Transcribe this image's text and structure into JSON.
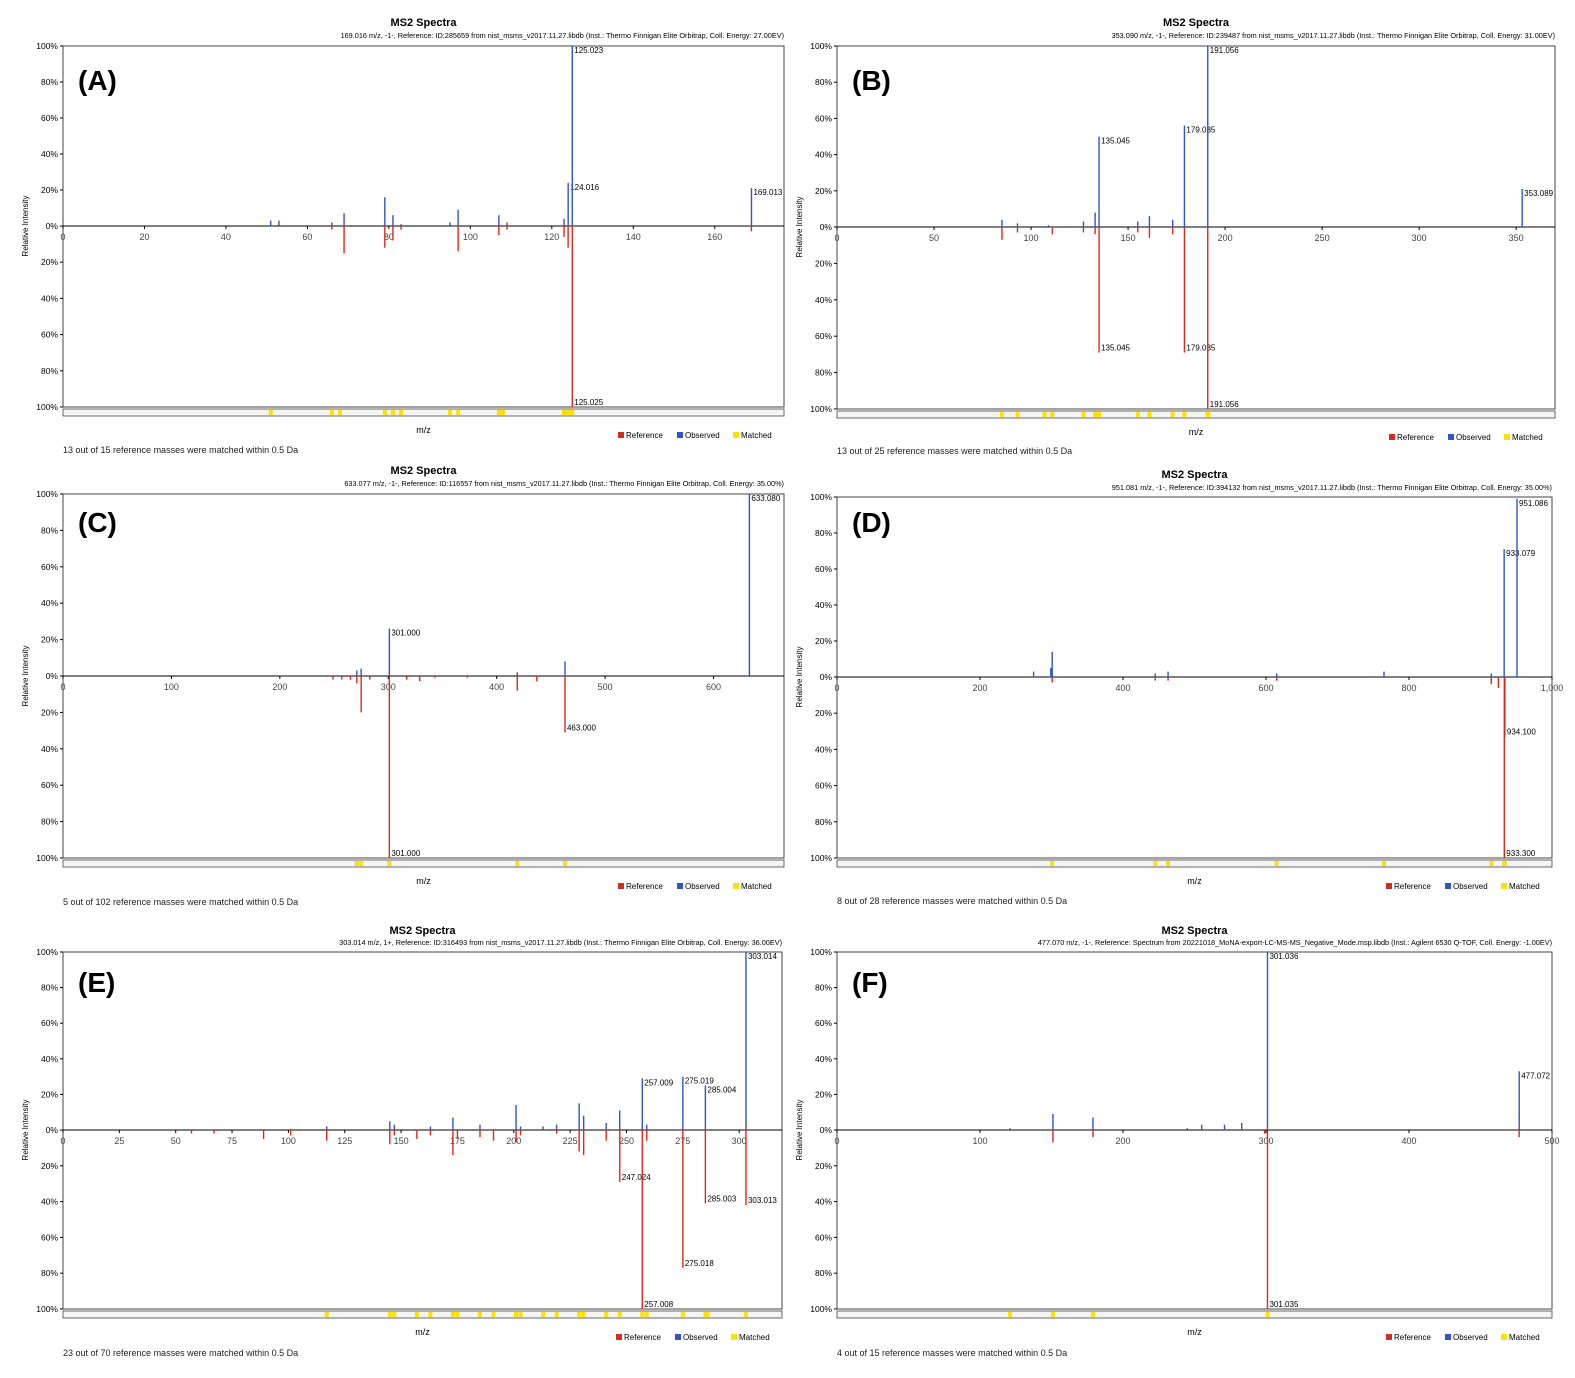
{
  "figure": {
    "legend": {
      "reference": "Reference",
      "observed": "Observed",
      "matched": "Matched"
    },
    "colors": {
      "reference": "#d62b1e",
      "observed": "#2f55c8",
      "matched": "#ffe000",
      "axis": "#000000",
      "frame": "#444444",
      "matchbar": "#f4f4f4"
    }
  },
  "chart_data": [
    {
      "type": "bar",
      "panel_label": "(A)",
      "title": "MS2 Spectra",
      "subtitle": "169.016 m/z, -1-, Reference: ID:285659 from nist_msms_v2017.11.27.libdb (Inst.: Thermo Finnigan Elite Orbitrap, Coll. Energy: 27.00EV)",
      "xlabel": "m/z",
      "ylabel": "Relative Intensity",
      "xlim": [
        0,
        177
      ],
      "xticks": [
        0,
        20,
        40,
        60,
        80,
        100,
        120,
        140,
        160
      ],
      "xtick_labels": [
        "0",
        "20",
        "40",
        "60",
        "80",
        "100",
        "120",
        "140",
        "160"
      ],
      "yticks_up": [
        "100%",
        "80%",
        "60%",
        "40%",
        "20%",
        "0%"
      ],
      "yticks_down": [
        "20%",
        "40%",
        "60%",
        "80%",
        "100%"
      ],
      "observed": [
        {
          "mz": 51,
          "i": 3
        },
        {
          "mz": 53,
          "i": 3
        },
        {
          "mz": 66,
          "i": 2
        },
        {
          "mz": 69,
          "i": 7
        },
        {
          "mz": 79,
          "i": 16
        },
        {
          "mz": 81,
          "i": 6
        },
        {
          "mz": 83,
          "i": 1
        },
        {
          "mz": 95,
          "i": 2
        },
        {
          "mz": 97,
          "i": 9
        },
        {
          "mz": 107,
          "i": 6
        },
        {
          "mz": 109,
          "i": 2
        },
        {
          "mz": 123,
          "i": 4
        },
        {
          "mz": 124.016,
          "i": 24,
          "label": "124.016"
        },
        {
          "mz": 125.023,
          "i": 100,
          "label": "125.023"
        },
        {
          "mz": 169.013,
          "i": 21,
          "label": "169.013"
        }
      ],
      "reference": [
        {
          "mz": 66,
          "i": 2
        },
        {
          "mz": 69,
          "i": 15
        },
        {
          "mz": 79,
          "i": 12
        },
        {
          "mz": 81,
          "i": 8
        },
        {
          "mz": 83,
          "i": 2
        },
        {
          "mz": 97,
          "i": 14
        },
        {
          "mz": 107,
          "i": 5
        },
        {
          "mz": 109,
          "i": 2
        },
        {
          "mz": 123,
          "i": 6
        },
        {
          "mz": 124,
          "i": 12
        },
        {
          "mz": 125.025,
          "i": 100,
          "label": "125.025"
        },
        {
          "mz": 169,
          "i": 3
        }
      ],
      "matched": [
        51,
        66,
        68,
        79,
        81,
        83,
        95,
        97,
        107,
        108,
        123,
        124,
        125
      ],
      "footer": "13 out of 15 reference masses were matched within 0.5 Da"
    },
    {
      "type": "bar",
      "panel_label": "(B)",
      "title": "MS2 Spectra",
      "subtitle": "353.090 m/z, -1-, Reference: ID:239487 from nist_msms_v2017.11.27.libdb (Inst.: Thermo Finnigan Elite Orbitrap, Coll. Energy: 31.00EV)",
      "xlabel": "m/z",
      "ylabel": "Relative Intensity",
      "xlim": [
        0,
        370
      ],
      "xticks": [
        0,
        50,
        100,
        150,
        200,
        250,
        300,
        350
      ],
      "xtick_labels": [
        "0",
        "50",
        "100",
        "150",
        "200",
        "250",
        "300",
        "350"
      ],
      "yticks_up": [
        "100%",
        "80%",
        "60%",
        "40%",
        "20%",
        "0%"
      ],
      "yticks_down": [
        "20%",
        "40%",
        "60%",
        "80%",
        "100%"
      ],
      "observed": [
        {
          "mz": 85,
          "i": 4
        },
        {
          "mz": 93,
          "i": 2
        },
        {
          "mz": 109,
          "i": 1
        },
        {
          "mz": 127,
          "i": 3
        },
        {
          "mz": 133,
          "i": 8
        },
        {
          "mz": 135.045,
          "i": 50,
          "label": "135.045"
        },
        {
          "mz": 155,
          "i": 3
        },
        {
          "mz": 161,
          "i": 6
        },
        {
          "mz": 173,
          "i": 4
        },
        {
          "mz": 179.035,
          "i": 56,
          "label": "179.035"
        },
        {
          "mz": 191.056,
          "i": 100,
          "label": "191.056"
        },
        {
          "mz": 353.089,
          "i": 21,
          "label": "353.089"
        }
      ],
      "reference": [
        {
          "mz": 85,
          "i": 7
        },
        {
          "mz": 93,
          "i": 3
        },
        {
          "mz": 111,
          "i": 4
        },
        {
          "mz": 127,
          "i": 3
        },
        {
          "mz": 133,
          "i": 4
        },
        {
          "mz": 135.045,
          "i": 69,
          "label": "135.045"
        },
        {
          "mz": 155,
          "i": 3
        },
        {
          "mz": 161,
          "i": 6
        },
        {
          "mz": 173,
          "i": 4
        },
        {
          "mz": 179.035,
          "i": 69,
          "label": "179.035"
        },
        {
          "mz": 191.056,
          "i": 100,
          "label": "191.056"
        }
      ],
      "matched": [
        85,
        93,
        107,
        111,
        127,
        133,
        135,
        155,
        161,
        173,
        179,
        191,
        191.4
      ],
      "footer": "13 out of 25 reference masses were matched within 0.5 Da"
    },
    {
      "type": "bar",
      "panel_label": "(C)",
      "title": "MS2 Spectra",
      "subtitle": "633.077 m/z, -1-, Reference: ID:116557 from nist_msms_v2017.11.27.libdb (Inst.: Thermo Finnigan Elite Orbitrap, Coll. Energy: 35.00%)",
      "xlabel": "m/z",
      "ylabel": "Relative Intensity",
      "xlim": [
        0,
        665
      ],
      "xticks": [
        0,
        100,
        200,
        300,
        400,
        500,
        600
      ],
      "xtick_labels": [
        "0",
        "100",
        "200",
        "300",
        "400",
        "500",
        "600"
      ],
      "yticks_up": [
        "100%",
        "80%",
        "60%",
        "40%",
        "20%",
        "0%"
      ],
      "yticks_down": [
        "20%",
        "40%",
        "60%",
        "80%",
        "100%"
      ],
      "observed": [
        {
          "mz": 271,
          "i": 3
        },
        {
          "mz": 275,
          "i": 4
        },
        {
          "mz": 301.0,
          "i": 26,
          "label": "301.000"
        },
        {
          "mz": 419,
          "i": 2
        },
        {
          "mz": 463,
          "i": 8
        },
        {
          "mz": 633.08,
          "i": 100,
          "label": "633.080"
        }
      ],
      "reference": [
        {
          "mz": 249,
          "i": 2
        },
        {
          "mz": 257,
          "i": 2
        },
        {
          "mz": 265,
          "i": 2
        },
        {
          "mz": 271,
          "i": 4
        },
        {
          "mz": 275,
          "i": 20
        },
        {
          "mz": 283,
          "i": 2
        },
        {
          "mz": 301.0,
          "i": 100,
          "label": "301.000"
        },
        {
          "mz": 317,
          "i": 2
        },
        {
          "mz": 329,
          "i": 3
        },
        {
          "mz": 343,
          "i": 1
        },
        {
          "mz": 373,
          "i": 1
        },
        {
          "mz": 419,
          "i": 8
        },
        {
          "mz": 437,
          "i": 3
        },
        {
          "mz": 463.0,
          "i": 31,
          "label": "463.000"
        }
      ],
      "matched": [
        271,
        275,
        301,
        419,
        463
      ],
      "footer": "5 out of 102 reference masses were matched within 0.5 Da"
    },
    {
      "type": "bar",
      "panel_label": "(D)",
      "title": "MS2 Spectra",
      "subtitle": "951.081 m/z, -1-, Reference: ID:394132 from nist_msms_v2017.11.27.libdb (Inst.: Thermo Finnigan Elite Orbitrap, Coll. Energy: 35.00%)",
      "xlabel": "m/z",
      "ylabel": "Relative Intensity",
      "xlim": [
        0,
        1000
      ],
      "xticks": [
        0,
        200,
        400,
        600,
        800,
        1000
      ],
      "xtick_labels": [
        "0",
        "200",
        "400",
        "600",
        "800",
        "1,000"
      ],
      "yticks_up": [
        "100%",
        "80%",
        "60%",
        "40%",
        "20%",
        "0%"
      ],
      "yticks_down": [
        "20%",
        "40%",
        "60%",
        "80%",
        "100%"
      ],
      "observed": [
        {
          "mz": 275,
          "i": 3
        },
        {
          "mz": 299,
          "i": 5
        },
        {
          "mz": 301,
          "i": 14
        },
        {
          "mz": 445,
          "i": 2
        },
        {
          "mz": 463,
          "i": 3
        },
        {
          "mz": 615,
          "i": 2
        },
        {
          "mz": 765,
          "i": 3
        },
        {
          "mz": 915,
          "i": 2
        },
        {
          "mz": 933.079,
          "i": 71,
          "label": "933.079"
        },
        {
          "mz": 951.086,
          "i": 99,
          "label": "951.086"
        }
      ],
      "reference": [
        {
          "mz": 301,
          "i": 3
        },
        {
          "mz": 445,
          "i": 2
        },
        {
          "mz": 463,
          "i": 2
        },
        {
          "mz": 615,
          "i": 2
        },
        {
          "mz": 915,
          "i": 4
        },
        {
          "mz": 925,
          "i": 6
        },
        {
          "mz": 934.1,
          "i": 33,
          "label": "934.100"
        },
        {
          "mz": 933.3,
          "i": 100,
          "label": "933.300"
        }
      ],
      "matched": [
        301,
        445,
        463,
        615,
        765,
        915,
        933,
        934
      ],
      "footer": "8 out of 28 reference masses were matched within 0.5 Da"
    },
    {
      "type": "bar",
      "panel_label": "(E)",
      "title": "MS2 Spectra",
      "subtitle": "303.014 m/z, 1+, Reference: ID:316493 from nist_msms_v2017.11.27.libdb (Inst.: Thermo Finnigan Elite Orbitrap, Coll. Energy: 36.00EV)",
      "xlabel": "m/z",
      "ylabel": "Relative Intensity",
      "xlim": [
        0,
        319
      ],
      "xticks": [
        0,
        25,
        50,
        75,
        100,
        125,
        150,
        175,
        200,
        225,
        250,
        275,
        300
      ],
      "xtick_labels": [
        "0",
        "25",
        "50",
        "75",
        "100",
        "125",
        "150",
        "175",
        "200",
        "225",
        "250",
        "275",
        "300"
      ],
      "yticks_up": [
        "100%",
        "80%",
        "60%",
        "40%",
        "20%",
        "0%"
      ],
      "yticks_down": [
        "20%",
        "40%",
        "60%",
        "80%",
        "100%"
      ],
      "observed": [
        {
          "mz": 117,
          "i": 2
        },
        {
          "mz": 145,
          "i": 5
        },
        {
          "mz": 147,
          "i": 3
        },
        {
          "mz": 163,
          "i": 2
        },
        {
          "mz": 173,
          "i": 7
        },
        {
          "mz": 185,
          "i": 3
        },
        {
          "mz": 201,
          "i": 14
        },
        {
          "mz": 203,
          "i": 2
        },
        {
          "mz": 213,
          "i": 2
        },
        {
          "mz": 219,
          "i": 3
        },
        {
          "mz": 229,
          "i": 15
        },
        {
          "mz": 231,
          "i": 8
        },
        {
          "mz": 241,
          "i": 4
        },
        {
          "mz": 247,
          "i": 11
        },
        {
          "mz": 257.009,
          "i": 29,
          "label": "257.009"
        },
        {
          "mz": 259,
          "i": 3
        },
        {
          "mz": 275.019,
          "i": 30,
          "label": "275.019"
        },
        {
          "mz": 285.004,
          "i": 25,
          "label": "285.004"
        },
        {
          "mz": 303.014,
          "i": 100,
          "label": "303.014"
        }
      ],
      "reference": [
        {
          "mz": 57,
          "i": 2
        },
        {
          "mz": 67,
          "i": 2
        },
        {
          "mz": 89,
          "i": 5
        },
        {
          "mz": 101,
          "i": 3
        },
        {
          "mz": 117,
          "i": 6
        },
        {
          "mz": 145,
          "i": 8
        },
        {
          "mz": 147,
          "i": 3
        },
        {
          "mz": 157,
          "i": 5
        },
        {
          "mz": 163,
          "i": 3
        },
        {
          "mz": 173,
          "i": 14
        },
        {
          "mz": 175,
          "i": 5
        },
        {
          "mz": 185,
          "i": 4
        },
        {
          "mz": 191,
          "i": 6
        },
        {
          "mz": 201,
          "i": 7
        },
        {
          "mz": 203,
          "i": 3
        },
        {
          "mz": 219,
          "i": 2
        },
        {
          "mz": 229,
          "i": 12
        },
        {
          "mz": 231,
          "i": 14
        },
        {
          "mz": 241,
          "i": 6
        },
        {
          "mz": 247.024,
          "i": 29,
          "label": "247.024"
        },
        {
          "mz": 257.008,
          "i": 100,
          "label": "257.008"
        },
        {
          "mz": 259,
          "i": 6
        },
        {
          "mz": 275.018,
          "i": 77,
          "label": "275.018"
        },
        {
          "mz": 285.003,
          "i": 41,
          "label": "285.003"
        },
        {
          "mz": 303.013,
          "i": 42,
          "label": "303.013"
        }
      ],
      "matched": [
        117,
        145,
        147,
        157,
        163,
        173,
        175,
        185,
        191,
        201,
        203,
        213,
        219,
        229,
        231,
        241,
        247,
        257,
        259,
        275,
        285,
        286,
        303
      ],
      "footer": "23 out of 70 reference masses were matched within 0.5 Da"
    },
    {
      "type": "bar",
      "panel_label": "(F)",
      "title": "MS2 Spectra",
      "subtitle": "477.070 m/z, -1-, Reference: Spectrum from 20221018_MoNA-export-LC-MS-MS_Negative_Mode.msp.libdb (Inst.: Agilent 6530 Q-TOF, Coll. Energy: -1.00EV)",
      "xlabel": "m/z",
      "ylabel": "Relative Intensity",
      "xlim": [
        0,
        500
      ],
      "xticks": [
        0,
        100,
        200,
        300,
        400,
        500
      ],
      "xtick_labels": [
        "0",
        "100",
        "200",
        "300",
        "400",
        "500"
      ],
      "yticks_up": [
        "100%",
        "80%",
        "60%",
        "40%",
        "20%",
        "0%"
      ],
      "yticks_down": [
        "20%",
        "40%",
        "60%",
        "80%",
        "100%"
      ],
      "observed": [
        {
          "mz": 121,
          "i": 1
        },
        {
          "mz": 151,
          "i": 9
        },
        {
          "mz": 179,
          "i": 7
        },
        {
          "mz": 245,
          "i": 1
        },
        {
          "mz": 255,
          "i": 3
        },
        {
          "mz": 271,
          "i": 3
        },
        {
          "mz": 283,
          "i": 4
        },
        {
          "mz": 301.036,
          "i": 100,
          "label": "301.036"
        },
        {
          "mz": 477.072,
          "i": 33,
          "label": "477.072"
        }
      ],
      "reference": [
        {
          "mz": 151,
          "i": 7
        },
        {
          "mz": 179,
          "i": 4
        },
        {
          "mz": 299,
          "i": 2
        },
        {
          "mz": 301.035,
          "i": 100,
          "label": "301.035"
        },
        {
          "mz": 477,
          "i": 4
        }
      ],
      "matched": [
        121,
        151,
        179,
        301
      ],
      "footer": "4 out of 15 reference masses were matched within 0.5 Da"
    }
  ]
}
